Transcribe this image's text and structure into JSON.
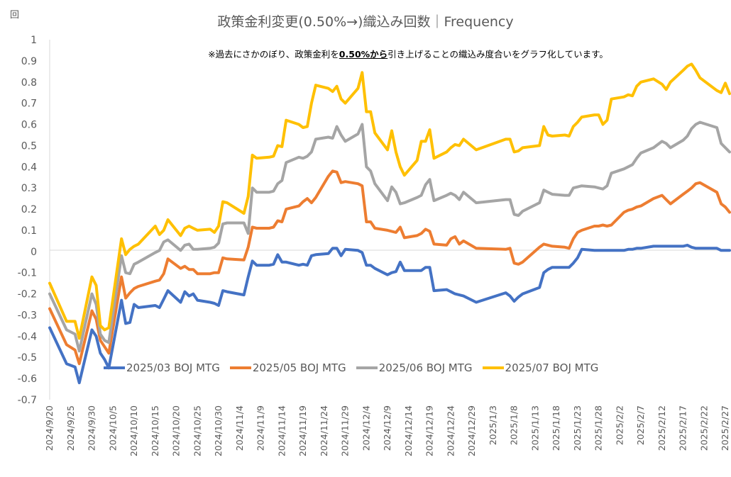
{
  "chart_data": {
    "type": "line",
    "title": "政策金利変更(0.50%→)織込み回数｜Frequency",
    "unit_label": "回",
    "note": {
      "prefix": "※過去にさかのぼり、政策金利を",
      "bold": "0.50%から",
      "suffix": "引き上げることの織込み度合いをグラフ化しています。"
    },
    "ylim": [
      -0.7,
      1
    ],
    "yticks": [
      -0.7,
      -0.6,
      -0.5,
      -0.4,
      -0.3,
      -0.2,
      -0.1,
      0,
      0.1,
      0.2,
      0.3,
      0.4,
      0.5,
      0.6,
      0.7,
      0.8,
      0.9,
      1
    ],
    "ytick_labels": [
      "-0.7",
      "-0.6",
      "-0.5",
      "-0.4",
      "-0.3",
      "-0.2",
      "-0.1",
      "0",
      "0.1",
      "0.2",
      "0.3",
      "0.4",
      "0.5",
      "0.6",
      "0.7",
      "0.8",
      "0.9",
      "1"
    ],
    "xlim": [
      "2024-09-20",
      "2025-02-28"
    ],
    "xticks": [
      "2024-09-20",
      "2024-09-25",
      "2024-09-30",
      "2024-10-05",
      "2024-10-10",
      "2024-10-15",
      "2024-10-20",
      "2024-10-25",
      "2024-10-30",
      "2024-11-04",
      "2024-11-09",
      "2024-11-14",
      "2024-11-19",
      "2024-11-24",
      "2024-11-29",
      "2024-12-04",
      "2024-12-09",
      "2024-12-14",
      "2024-12-19",
      "2024-12-24",
      "2024-12-29",
      "2025-01-03",
      "2025-01-08",
      "2025-01-13",
      "2025-01-18",
      "2025-01-23",
      "2025-01-28",
      "2025-02-02",
      "2025-02-07",
      "2025-02-12",
      "2025-02-17",
      "2025-02-22",
      "2025-02-27"
    ],
    "xtick_labels": [
      "2024/9/20",
      "2024/9/25",
      "2024/9/30",
      "2024/10/5",
      "2024/10/10",
      "2024/10/15",
      "2024/10/20",
      "2024/10/25",
      "2024/10/30",
      "2024/11/4",
      "2024/11/9",
      "2024/11/14",
      "2024/11/19",
      "2024/11/24",
      "2024/11/29",
      "2024/12/4",
      "2024/12/9",
      "2024/12/14",
      "2024/12/19",
      "2024/12/24",
      "2024/12/29",
      "2025/1/3",
      "2025/1/8",
      "2025/1/13",
      "2025/1/18",
      "2025/1/23",
      "2025/1/28",
      "2025/2/2",
      "2025/2/7",
      "2025/2/12",
      "2025/2/17",
      "2025/2/22",
      "2025/2/27"
    ],
    "grid": false,
    "legend_position": "bottom-left",
    "x": [
      "2024-09-20",
      "2024-09-24",
      "2024-09-26",
      "2024-09-27",
      "2024-09-30",
      "2024-10-01",
      "2024-10-02",
      "2024-10-03",
      "2024-10-04",
      "2024-10-07",
      "2024-10-08",
      "2024-10-09",
      "2024-10-10",
      "2024-10-11",
      "2024-10-15",
      "2024-10-16",
      "2024-10-17",
      "2024-10-18",
      "2024-10-21",
      "2024-10-22",
      "2024-10-23",
      "2024-10-24",
      "2024-10-25",
      "2024-10-28",
      "2024-10-29",
      "2024-10-30",
      "2024-10-31",
      "2024-11-01",
      "2024-11-05",
      "2024-11-06",
      "2024-11-07",
      "2024-11-08",
      "2024-11-11",
      "2024-11-12",
      "2024-11-13",
      "2024-11-14",
      "2024-11-15",
      "2024-11-18",
      "2024-11-19",
      "2024-11-20",
      "2024-11-21",
      "2024-11-22",
      "2024-11-25",
      "2024-11-26",
      "2024-11-27",
      "2024-11-28",
      "2024-11-29",
      "2024-12-02",
      "2024-12-03",
      "2024-12-04",
      "2024-12-05",
      "2024-12-06",
      "2024-12-09",
      "2024-12-10",
      "2024-12-11",
      "2024-12-12",
      "2024-12-13",
      "2024-12-16",
      "2024-12-17",
      "2024-12-18",
      "2024-12-19",
      "2024-12-20",
      "2024-12-23",
      "2024-12-24",
      "2024-12-25",
      "2024-12-26",
      "2024-12-27",
      "2024-12-30",
      "2025-01-06",
      "2025-01-07",
      "2025-01-08",
      "2025-01-09",
      "2025-01-10",
      "2025-01-14",
      "2025-01-15",
      "2025-01-16",
      "2025-01-17",
      "2025-01-20",
      "2025-01-21",
      "2025-01-22",
      "2025-01-23",
      "2025-01-24",
      "2025-01-27",
      "2025-01-28",
      "2025-01-29",
      "2025-01-30",
      "2025-01-31",
      "2025-02-03",
      "2025-02-04",
      "2025-02-05",
      "2025-02-06",
      "2025-02-07",
      "2025-02-10",
      "2025-02-12",
      "2025-02-13",
      "2025-02-14",
      "2025-02-17",
      "2025-02-18",
      "2025-02-19",
      "2025-02-20",
      "2025-02-21",
      "2025-02-25",
      "2025-02-26",
      "2025-02-27",
      "2025-02-28"
    ],
    "series": [
      {
        "name": "2025/03 BOJ MTG",
        "color": "#4472C4",
        "values": [
          -0.36,
          -0.53,
          -0.545,
          -0.62,
          -0.37,
          -0.4,
          -0.48,
          -0.51,
          -0.55,
          -0.23,
          -0.34,
          -0.335,
          -0.25,
          -0.265,
          -0.255,
          -0.265,
          -0.225,
          -0.185,
          -0.24,
          -0.19,
          -0.21,
          -0.2,
          -0.23,
          -0.24,
          -0.245,
          -0.255,
          -0.185,
          -0.19,
          -0.205,
          -0.12,
          -0.045,
          -0.065,
          -0.065,
          -0.06,
          -0.015,
          -0.05,
          -0.05,
          -0.065,
          -0.06,
          -0.065,
          -0.02,
          -0.015,
          -0.01,
          0.015,
          0.015,
          -0.02,
          0.01,
          0.005,
          -0.005,
          -0.065,
          -0.065,
          -0.08,
          -0.11,
          -0.1,
          -0.095,
          -0.05,
          -0.09,
          -0.09,
          -0.09,
          -0.075,
          -0.075,
          -0.185,
          -0.18,
          -0.19,
          -0.2,
          -0.205,
          -0.21,
          -0.24,
          -0.195,
          -0.21,
          -0.235,
          -0.215,
          -0.2,
          -0.17,
          -0.1,
          -0.085,
          -0.075,
          -0.075,
          -0.075,
          -0.055,
          -0.03,
          0.01,
          0.005,
          0.005,
          0.005,
          0.005,
          0.005,
          0.005,
          0.01,
          0.01,
          0.015,
          0.015,
          0.025,
          0.025,
          0.025,
          0.025,
          0.025,
          0.03,
          0.02,
          0.015,
          0.015,
          0.015,
          0.005,
          0.005,
          0.005
        ]
      },
      {
        "name": "2025/05 BOJ MTG",
        "color": "#ED7D31",
        "values": [
          -0.27,
          -0.44,
          -0.465,
          -0.53,
          -0.28,
          -0.32,
          -0.42,
          -0.45,
          -0.48,
          -0.12,
          -0.22,
          -0.195,
          -0.175,
          -0.165,
          -0.14,
          -0.135,
          -0.105,
          -0.035,
          -0.08,
          -0.07,
          -0.085,
          -0.085,
          -0.105,
          -0.105,
          -0.1,
          -0.1,
          -0.03,
          -0.035,
          -0.04,
          0.02,
          0.115,
          0.11,
          0.11,
          0.115,
          0.145,
          0.14,
          0.2,
          0.215,
          0.235,
          0.25,
          0.23,
          0.255,
          0.355,
          0.38,
          0.375,
          0.325,
          0.33,
          0.32,
          0.31,
          0.14,
          0.14,
          0.11,
          0.1,
          0.095,
          0.09,
          0.115,
          0.065,
          0.075,
          0.085,
          0.105,
          0.095,
          0.035,
          0.03,
          0.06,
          0.07,
          0.035,
          0.05,
          0.015,
          0.01,
          0.015,
          -0.055,
          -0.06,
          -0.05,
          0.02,
          0.035,
          0.03,
          0.025,
          0.02,
          0.015,
          0.06,
          0.09,
          0.1,
          0.12,
          0.12,
          0.125,
          0.12,
          0.125,
          0.185,
          0.195,
          0.2,
          0.21,
          0.215,
          0.25,
          0.265,
          0.245,
          0.225,
          0.27,
          0.285,
          0.3,
          0.32,
          0.325,
          0.28,
          0.225,
          0.21,
          0.185
        ]
      },
      {
        "name": "2025/06 BOJ MTG",
        "color": "#A5A5A5",
        "values": [
          -0.2,
          -0.37,
          -0.39,
          -0.47,
          -0.2,
          -0.25,
          -0.39,
          -0.42,
          -0.43,
          -0.02,
          -0.1,
          -0.105,
          -0.06,
          -0.05,
          -0.005,
          0.005,
          0.045,
          0.055,
          0.005,
          0.03,
          0.035,
          0.01,
          0.01,
          0.015,
          0.02,
          0.04,
          0.13,
          0.135,
          0.135,
          0.085,
          0.3,
          0.28,
          0.28,
          0.285,
          0.32,
          0.335,
          0.42,
          0.445,
          0.44,
          0.45,
          0.47,
          0.53,
          0.54,
          0.535,
          0.59,
          0.55,
          0.52,
          0.555,
          0.6,
          0.4,
          0.38,
          0.32,
          0.24,
          0.305,
          0.28,
          0.225,
          0.23,
          0.255,
          0.265,
          0.315,
          0.34,
          0.24,
          0.265,
          0.275,
          0.265,
          0.245,
          0.28,
          0.23,
          0.245,
          0.245,
          0.175,
          0.17,
          0.19,
          0.23,
          0.29,
          0.28,
          0.27,
          0.265,
          0.265,
          0.3,
          0.305,
          0.31,
          0.305,
          0.3,
          0.295,
          0.31,
          0.37,
          0.39,
          0.4,
          0.41,
          0.44,
          0.465,
          0.49,
          0.52,
          0.51,
          0.49,
          0.525,
          0.545,
          0.58,
          0.6,
          0.61,
          0.585,
          0.51,
          0.49,
          0.47
        ]
      },
      {
        "name": "2025/07 BOJ MTG",
        "color": "#FFC000",
        "values": [
          -0.15,
          -0.33,
          -0.33,
          -0.41,
          -0.12,
          -0.16,
          -0.35,
          -0.37,
          -0.36,
          0.06,
          -0.015,
          0.01,
          0.025,
          0.035,
          0.12,
          0.08,
          0.1,
          0.15,
          0.075,
          0.11,
          0.12,
          0.11,
          0.1,
          0.105,
          0.09,
          0.12,
          0.235,
          0.23,
          0.18,
          0.26,
          0.455,
          0.44,
          0.445,
          0.45,
          0.5,
          0.495,
          0.62,
          0.6,
          0.585,
          0.59,
          0.7,
          0.785,
          0.77,
          0.755,
          0.78,
          0.72,
          0.7,
          0.77,
          0.845,
          0.66,
          0.66,
          0.56,
          0.48,
          0.57,
          0.47,
          0.4,
          0.36,
          0.43,
          0.52,
          0.52,
          0.575,
          0.44,
          0.47,
          0.49,
          0.505,
          0.5,
          0.53,
          0.48,
          0.53,
          0.53,
          0.47,
          0.475,
          0.49,
          0.5,
          0.59,
          0.55,
          0.545,
          0.55,
          0.545,
          0.59,
          0.61,
          0.635,
          0.645,
          0.645,
          0.6,
          0.62,
          0.72,
          0.73,
          0.74,
          0.735,
          0.78,
          0.8,
          0.815,
          0.79,
          0.765,
          0.8,
          0.855,
          0.875,
          0.885,
          0.855,
          0.82,
          0.76,
          0.75,
          0.795,
          0.745
        ]
      }
    ]
  }
}
